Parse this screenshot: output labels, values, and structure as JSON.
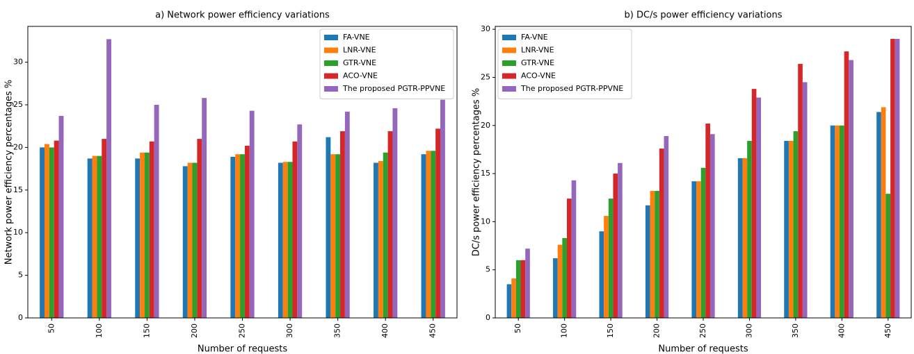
{
  "chart_data": [
    {
      "type": "bar",
      "title": "a) Network power efficiency variations",
      "x_label": "Number of requests",
      "y_label": "Network power efficiency percentages %",
      "categories": [
        "50",
        "100",
        "150",
        "200",
        "250",
        "300",
        "350",
        "400",
        "450"
      ],
      "series": [
        {
          "name": "FA-VNE",
          "color": "#1f77b4",
          "values": [
            20.0,
            18.7,
            18.7,
            17.8,
            18.9,
            18.2,
            21.2,
            18.2,
            19.2
          ]
        },
        {
          "name": "LNR-VNE",
          "color": "#ff7f0e",
          "values": [
            20.4,
            19.0,
            19.4,
            18.2,
            19.2,
            18.3,
            19.2,
            18.4,
            19.6
          ]
        },
        {
          "name": "GTR-VNE",
          "color": "#2ca02c",
          "values": [
            20.0,
            19.0,
            19.4,
            18.2,
            19.2,
            18.3,
            19.2,
            19.4,
            19.6
          ]
        },
        {
          "name": "ACO-VNE",
          "color": "#d62728",
          "values": [
            20.8,
            21.0,
            20.7,
            21.0,
            20.2,
            20.7,
            21.9,
            21.9,
            22.2
          ]
        },
        {
          "name": "The proposed PGTR-PPVNE",
          "color": "#9467bd",
          "values": [
            23.7,
            32.7,
            25.0,
            25.8,
            24.3,
            22.7,
            24.2,
            24.6,
            25.6
          ]
        }
      ],
      "ylim": [
        0,
        34.2
      ],
      "yticks": [
        0,
        5,
        10,
        15,
        20,
        25,
        30
      ],
      "legend": "upper right"
    },
    {
      "type": "bar",
      "title": "b) DC/s power efficiency variations",
      "x_label": "Number of requests",
      "y_label": "DC/s power efficiency percentages %",
      "categories": [
        "50",
        "100",
        "150",
        "200",
        "250",
        "300",
        "350",
        "400",
        "450"
      ],
      "series": [
        {
          "name": "FA-VNE",
          "color": "#1f77b4",
          "values": [
            3.5,
            6.2,
            9.0,
            11.7,
            14.2,
            16.6,
            18.4,
            20.0,
            21.4
          ]
        },
        {
          "name": "LNR-VNE",
          "color": "#ff7f0e",
          "values": [
            4.1,
            7.6,
            10.6,
            13.2,
            14.2,
            16.6,
            18.4,
            20.0,
            21.9
          ]
        },
        {
          "name": "GTR-VNE",
          "color": "#2ca02c",
          "values": [
            6.0,
            8.3,
            12.4,
            13.2,
            15.6,
            18.4,
            19.4,
            20.0,
            12.9
          ]
        },
        {
          "name": "ACO-VNE",
          "color": "#d62728",
          "values": [
            6.0,
            12.4,
            15.0,
            17.6,
            20.2,
            23.8,
            26.4,
            27.7,
            29.0
          ]
        },
        {
          "name": "The proposed PGTR-PPVNE",
          "color": "#9467bd",
          "values": [
            7.2,
            14.3,
            16.1,
            18.9,
            19.1,
            22.9,
            24.5,
            26.8,
            29.0
          ]
        }
      ],
      "ylim": [
        0,
        30.3
      ],
      "yticks": [
        0,
        5,
        10,
        15,
        20,
        25,
        30
      ],
      "legend": "upper left"
    }
  ]
}
